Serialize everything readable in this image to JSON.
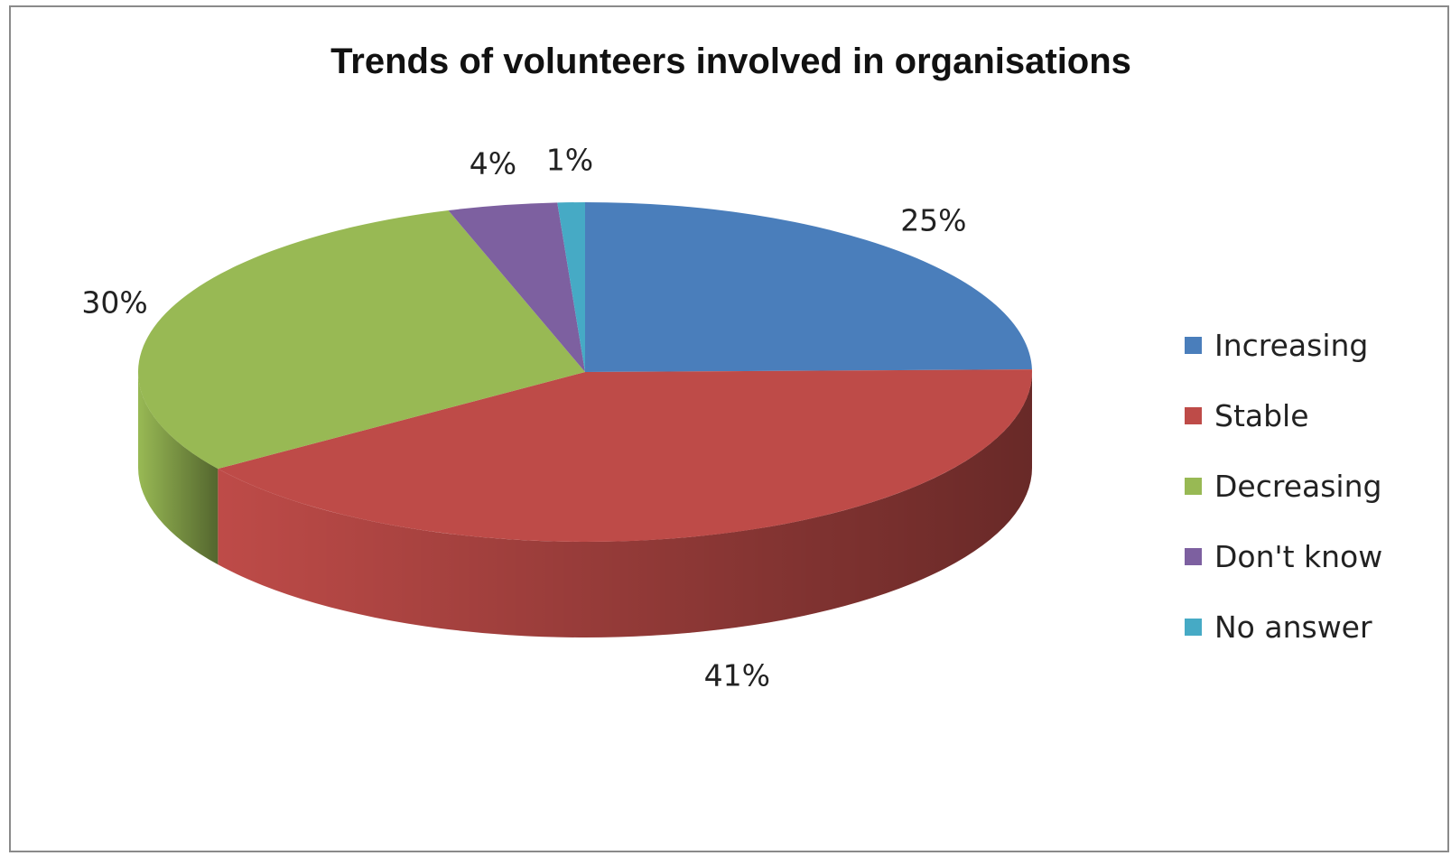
{
  "chart_data": {
    "type": "pie",
    "title": "Trends of volunteers involved in organisations",
    "categories": [
      "Increasing",
      "Stable",
      "Decreasing",
      "Don't know",
      "No answer"
    ],
    "values": [
      25,
      41,
      30,
      4,
      1
    ],
    "value_labels": [
      "25%",
      "41%",
      "30%",
      "4%",
      "1%"
    ],
    "colors": [
      "#4a7ebb",
      "#be4b48",
      "#98b954",
      "#7d60a0",
      "#46aac5"
    ],
    "style": "3d-pie",
    "legend_position": "right"
  }
}
